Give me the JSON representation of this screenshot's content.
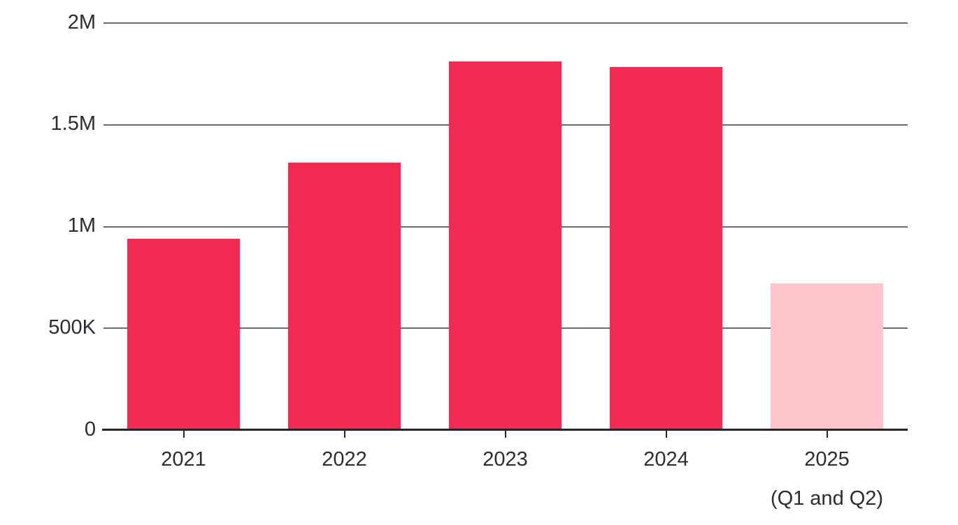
{
  "chart_data": {
    "type": "bar",
    "title": "",
    "xlabel": "",
    "ylabel": "",
    "categories": [
      "2021",
      "2022",
      "2023",
      "2024",
      "2025"
    ],
    "category_sublabels": [
      "",
      "",
      "",
      "",
      "(Q1 and Q2)"
    ],
    "values": [
      940000,
      1315000,
      1810000,
      1785000,
      720000
    ],
    "highlight_index": 4,
    "ylim": [
      0,
      2000000
    ],
    "y_ticks": [
      {
        "label": "0",
        "value": 0
      },
      {
        "label": "500K",
        "value": 500000
      },
      {
        "label": "1M",
        "value": 1000000
      },
      {
        "label": "1.5M",
        "value": 1500000
      },
      {
        "label": "2M",
        "value": 2000000
      }
    ],
    "grid": true,
    "legend": "none",
    "colors": {
      "bar": "#F02A50",
      "highlight_bar": "#FFC5CC",
      "gridline": "#6E6A75",
      "axis_line": "#262329",
      "label_text": "#2D2B33"
    }
  }
}
